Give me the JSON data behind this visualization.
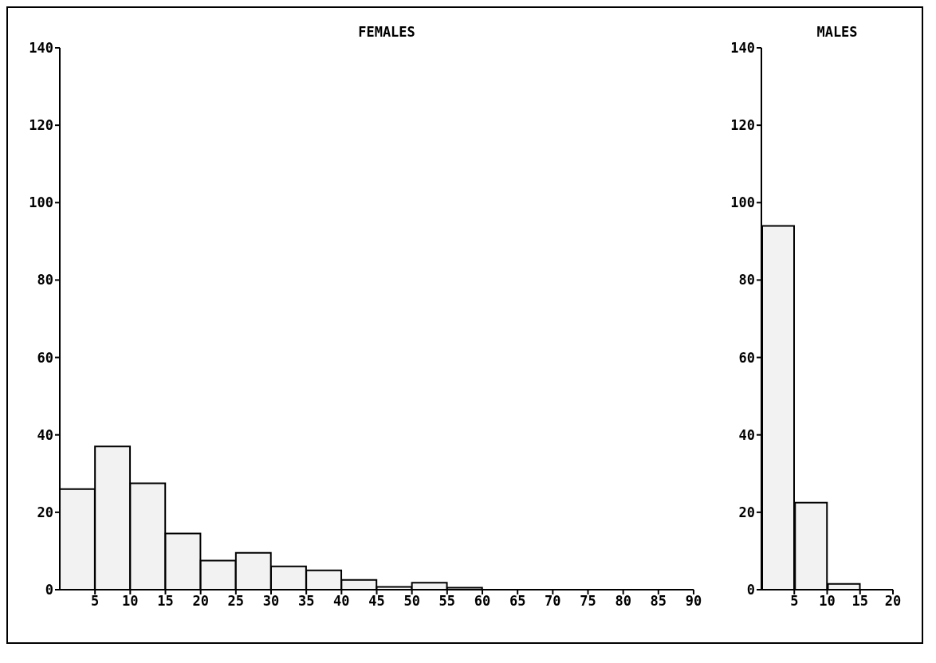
{
  "chart_data": [
    {
      "type": "histogram",
      "title": "FEMALES",
      "bins": [
        0,
        5,
        10,
        15,
        20,
        25,
        30,
        35,
        40,
        45,
        50,
        55,
        60,
        65,
        70,
        75,
        80,
        85,
        90
      ],
      "values": [
        26,
        37,
        27.5,
        14.5,
        7.5,
        9.5,
        6,
        5,
        2.5,
        0.7,
        1.8,
        0.5,
        0,
        0,
        0,
        0,
        0,
        0
      ],
      "color": "#f2f2f2",
      "xlim": [
        0,
        90
      ],
      "xticks": [
        5,
        10,
        15,
        20,
        25,
        30,
        35,
        40,
        45,
        50,
        55,
        60,
        65,
        70,
        75,
        80,
        85,
        90
      ],
      "ylim": [
        0,
        140
      ],
      "yticks": [
        0,
        20,
        40,
        60,
        80,
        100,
        120,
        140
      ],
      "grid": false,
      "legend": false
    },
    {
      "type": "histogram",
      "title": "MALES",
      "bins": [
        0,
        5,
        10,
        15,
        20
      ],
      "values": [
        94,
        22.5,
        1.5,
        0
      ],
      "color": "#f2f2f2",
      "xlim": [
        0,
        20
      ],
      "xticks": [
        5,
        10,
        15,
        20
      ],
      "ylim": [
        0,
        140
      ],
      "yticks": [
        0,
        20,
        40,
        60,
        80,
        100,
        120,
        140
      ],
      "grid": false,
      "legend": false
    }
  ]
}
